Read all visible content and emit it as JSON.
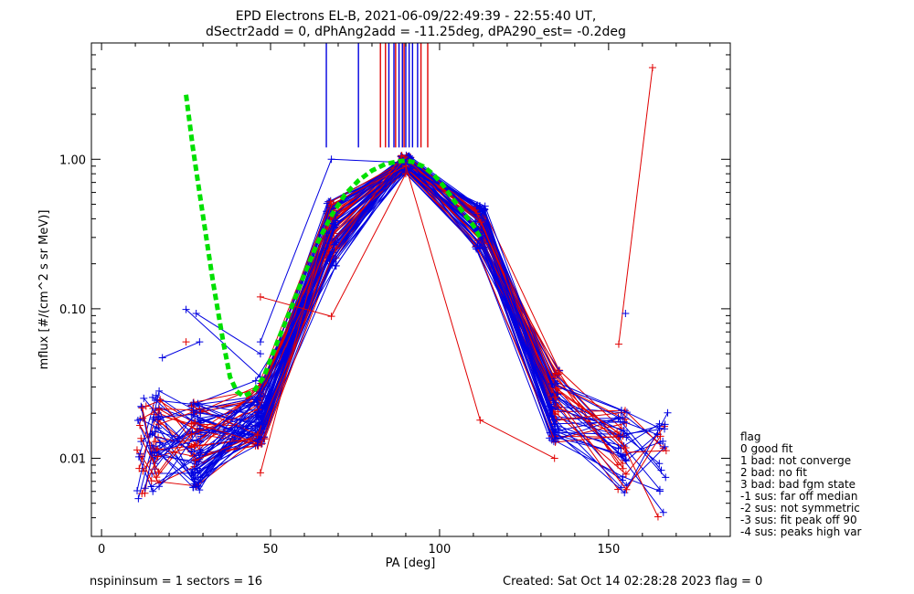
{
  "chart_data": {
    "type": "line",
    "title_line1": "EPD Electrons EL-B, 2021-06-09/22:49:39 - 22:55:40 UT,",
    "title_line2": "dSectr2add = 0, dPhAng2add = -11.25deg, dPA290_est=  -0.2deg",
    "xlabel": "PA [deg]",
    "ylabel": "mflux [#/(cm^2 s sr MeV)]",
    "xlim": [
      -3,
      186
    ],
    "ylim": [
      0.003,
      6.0
    ],
    "yscale": "log",
    "x_ticks": [
      0,
      50,
      100,
      150
    ],
    "x_tick_labels": [
      "0",
      "50",
      "100",
      "150"
    ],
    "y_ticks": [
      0.01,
      0.1,
      1.0
    ],
    "y_tick_labels": [
      "0.01",
      "0.10",
      "1.00"
    ],
    "grid": false,
    "colors": {
      "red": "#e00000",
      "blue": "#0000e0",
      "green": "#00e000",
      "black": "#000000"
    },
    "vertical_lines": {
      "ymin": 1.2,
      "ymax": 6.0,
      "blue_x": [
        66.5,
        76,
        85,
        86.5,
        88,
        89,
        90,
        91,
        92,
        93.5
      ],
      "red_x": [
        82.5,
        84,
        87,
        89.5,
        94.5,
        96.5
      ]
    },
    "fit_curve": {
      "color": "green",
      "style": "dashed",
      "x": [
        25,
        27,
        30,
        33,
        36,
        38,
        40,
        42,
        45,
        48,
        52,
        56,
        60,
        64,
        68,
        72,
        76,
        80,
        84,
        88,
        90,
        92,
        95,
        98,
        101,
        104,
        107,
        110,
        112
      ],
      "y": [
        2.7,
        1.2,
        0.42,
        0.15,
        0.06,
        0.035,
        0.028,
        0.026,
        0.028,
        0.035,
        0.06,
        0.1,
        0.17,
        0.28,
        0.42,
        0.58,
        0.72,
        0.84,
        0.93,
        0.97,
        0.98,
        0.96,
        0.9,
        0.8,
        0.67,
        0.54,
        0.44,
        0.36,
        0.3
      ]
    },
    "series_note": "Unlabeled per-spin sample traces; blue and red as drawn",
    "pa_bins": [
      12,
      16,
      28,
      47,
      68,
      90,
      112,
      134,
      154,
      166
    ],
    "template": {
      "shape": [
        0.012,
        0.013,
        0.012,
        0.02,
        0.32,
        0.95,
        0.35,
        0.022,
        0.011,
        0.009
      ],
      "spread": [
        0.35,
        0.35,
        0.3,
        0.22,
        0.22,
        0.05,
        0.15,
        0.25,
        0.3,
        0.35
      ]
    },
    "outliers": [
      {
        "color": "red",
        "x": [
          153,
          163
        ],
        "y": [
          0.058,
          4.1
        ]
      },
      {
        "color": "blue",
        "x": [
          25,
          47
        ],
        "y": [
          0.099,
          0.035
        ]
      },
      {
        "color": "blue",
        "x": [
          28,
          47
        ],
        "y": [
          0.093,
          0.05
        ]
      },
      {
        "color": "blue",
        "x": [
          18,
          29
        ],
        "y": [
          0.047,
          0.06
        ]
      },
      {
        "color": "blue",
        "x": [
          47,
          68,
          90
        ],
        "y": [
          0.06,
          1.0,
          0.95
        ]
      },
      {
        "color": "red",
        "x": [
          47,
          68,
          90
        ],
        "y": [
          0.12,
          0.089,
          0.8
        ]
      },
      {
        "color": "red",
        "x": [
          47,
          68,
          90,
          112,
          134
        ],
        "y": [
          0.008,
          0.5,
          0.9,
          0.018,
          0.01
        ]
      },
      {
        "color": "blue",
        "x": [
          155
        ],
        "y": [
          0.093
        ]
      },
      {
        "color": "red",
        "x": [
          25
        ],
        "y": [
          0.06
        ]
      }
    ],
    "legend": {
      "position": "right",
      "title": "flag",
      "entries": [
        " 0 good fit",
        " 1 bad: not converge",
        " 2 bad: no fit",
        " 3 bad: bad fgm state",
        "-1 sus: far off median",
        "-2 sus: not symmetric",
        "-3 sus: fit peak off 90",
        "-4 sus: peaks high var"
      ]
    },
    "footer": {
      "left": "nspininsum =  1  sectors = 16",
      "right": "Created: Sat Oct 14 02:28:28 2023   flag = 0"
    }
  }
}
